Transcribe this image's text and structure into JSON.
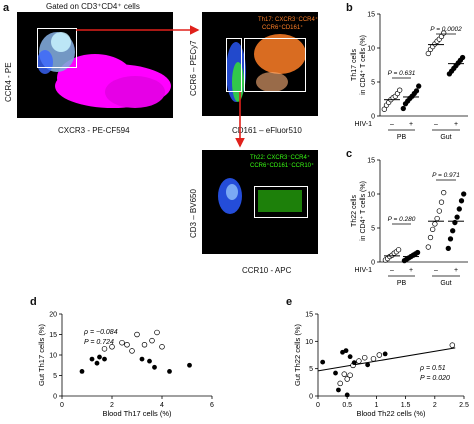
{
  "panel_letters": {
    "a": "a",
    "b": "b",
    "c": "c",
    "d": "d",
    "e": "e"
  },
  "flow": {
    "gate_title": "Gated on CD3⁺CD4⁺ cells",
    "p1_xlabel": "CXCR3 - PE-CF594",
    "p1_ylabel": "CCR4 - PE",
    "p2_xlabel": "CD161 – eFluor510",
    "p2_ylabel": "CCR6 – PECy7",
    "p2_gate_line1": "Th17: CXCR3⁻CCR4⁺",
    "p2_gate_line2": "CCR6⁺CD161⁺",
    "p3_xlabel": "CCR10 - APC",
    "p3_ylabel": "CD3 – BV650",
    "p3_gate_line1": "Th22: CXCR3⁻CCR4⁺",
    "p3_gate_line2": "CCR6⁺CD161⁻CCR10⁺",
    "colors": {
      "dots_magenta": "#ff00ff",
      "th17": "#ff7f27",
      "th22": "#39ff14",
      "arrow": "#e0211b"
    }
  },
  "chart_data": [
    {
      "panel": "b",
      "type": "scatter",
      "ylabel": "Th17 cells\nin CD4⁺ T cells (%)",
      "ylim": [
        0,
        15
      ],
      "yticks": [
        "0",
        "5",
        "10",
        "15"
      ],
      "row_label": "HIV-1",
      "signs": [
        "–",
        "+",
        "–",
        "+"
      ],
      "groups": [
        "PB",
        "Gut"
      ],
      "pvalues": [
        "P = 0.631",
        "P = 0.0002"
      ],
      "series": [
        {
          "name": "PB HIV-1 –",
          "open": true,
          "values": [
            1.0,
            1.6,
            2.0,
            2.4,
            2.7,
            2.9,
            3.3,
            3.8
          ]
        },
        {
          "name": "PB HIV-1 +",
          "open": false,
          "values": [
            1.1,
            1.8,
            2.2,
            2.6,
            2.9,
            3.3,
            3.7,
            4.4
          ]
        },
        {
          "name": "Gut HIV-1 –",
          "open": true,
          "values": [
            9.2,
            9.8,
            10.2,
            10.6,
            11.0,
            11.3,
            11.7,
            12.2
          ]
        },
        {
          "name": "Gut HIV-1 +",
          "open": false,
          "values": [
            6.2,
            6.6,
            7.0,
            7.4,
            7.8,
            8.2,
            8.6
          ]
        }
      ],
      "means": [
        2.4,
        2.8,
        10.5,
        7.7
      ]
    },
    {
      "panel": "c",
      "type": "scatter",
      "ylabel": "Th22 cells\nin CD4⁺ T cells (%)",
      "ylim": [
        0,
        15
      ],
      "yticks": [
        "0",
        "5",
        "10",
        "15"
      ],
      "row_label": "HIV-1",
      "signs": [
        "–",
        "+",
        "–",
        "+"
      ],
      "groups": [
        "PB",
        "Gut"
      ],
      "pvalues": [
        "P = 0.280",
        "P = 0.971"
      ],
      "series": [
        {
          "name": "PB HIV-1 –",
          "open": true,
          "values": [
            0.3,
            0.5,
            0.8,
            1.0,
            1.3,
            1.5,
            1.8
          ]
        },
        {
          "name": "PB HIV-1 +",
          "open": false,
          "values": [
            0.2,
            0.4,
            0.6,
            0.8,
            1.0,
            1.2,
            1.4
          ]
        },
        {
          "name": "Gut HIV-1 –",
          "open": true,
          "values": [
            2.2,
            3.6,
            4.8,
            5.6,
            6.4,
            7.5,
            8.8,
            10.2
          ]
        },
        {
          "name": "Gut HIV-1 +",
          "open": false,
          "values": [
            2.0,
            3.4,
            4.6,
            5.8,
            6.6,
            7.8,
            9.0,
            10.0
          ]
        }
      ],
      "means": [
        0.9,
        0.8,
        6.0,
        6.0
      ]
    },
    {
      "panel": "d",
      "type": "scatter",
      "xlabel": "Blood Th17 cells (%)",
      "ylabel": "Gut Th17 cells (%)",
      "xlim": [
        0,
        6
      ],
      "ylim": [
        0,
        20
      ],
      "xticks": [
        "0",
        "2",
        "4",
        "6"
      ],
      "yticks": [
        "0",
        "5",
        "10",
        "15",
        "20"
      ],
      "annotations": [
        "ρ = −0.084",
        "P = 0.724"
      ],
      "open_points": [
        [
          1.7,
          11.5
        ],
        [
          2.0,
          12.0
        ],
        [
          2.4,
          13.0
        ],
        [
          2.6,
          12.5
        ],
        [
          2.8,
          11.0
        ],
        [
          3.0,
          15.0
        ],
        [
          3.3,
          12.5
        ],
        [
          3.6,
          13.5
        ],
        [
          3.8,
          15.5
        ],
        [
          4.0,
          12.0
        ]
      ],
      "filled_points": [
        [
          0.8,
          6.0
        ],
        [
          1.2,
          9.0
        ],
        [
          1.4,
          8.0
        ],
        [
          1.5,
          9.5
        ],
        [
          1.7,
          9.0
        ],
        [
          3.2,
          9.0
        ],
        [
          3.5,
          8.5
        ],
        [
          3.7,
          7.0
        ],
        [
          4.3,
          6.0
        ],
        [
          5.1,
          7.5
        ]
      ]
    },
    {
      "panel": "e",
      "type": "scatter",
      "xlabel": "Blood Th22 cells (%)",
      "ylabel": "Gut Th22 cells (%)",
      "xlim": [
        0,
        2.5
      ],
      "ylim": [
        0,
        15
      ],
      "xticks": [
        "0",
        "0.5",
        "1",
        "1.5",
        "2",
        "2.5"
      ],
      "yticks": [
        "0",
        "5",
        "10",
        "15"
      ],
      "annotations": [
        "ρ = 0.51",
        "P = 0.020"
      ],
      "trendline": [
        [
          0.0,
          4.6
        ],
        [
          2.35,
          8.8
        ]
      ],
      "open_points": [
        [
          0.38,
          2.3
        ],
        [
          0.45,
          4.0
        ],
        [
          0.5,
          3.1
        ],
        [
          0.55,
          3.8
        ],
        [
          0.6,
          5.6
        ],
        [
          0.7,
          6.4
        ],
        [
          0.8,
          7.0
        ],
        [
          0.95,
          6.8
        ],
        [
          1.05,
          7.5
        ],
        [
          2.3,
          9.3
        ]
      ],
      "filled_points": [
        [
          0.08,
          6.2
        ],
        [
          0.3,
          4.2
        ],
        [
          0.35,
          1.1
        ],
        [
          0.42,
          8.0
        ],
        [
          0.48,
          8.3
        ],
        [
          0.5,
          0.2
        ],
        [
          0.55,
          7.2
        ],
        [
          0.62,
          6.1
        ],
        [
          0.85,
          5.7
        ],
        [
          1.15,
          7.7
        ]
      ]
    }
  ]
}
